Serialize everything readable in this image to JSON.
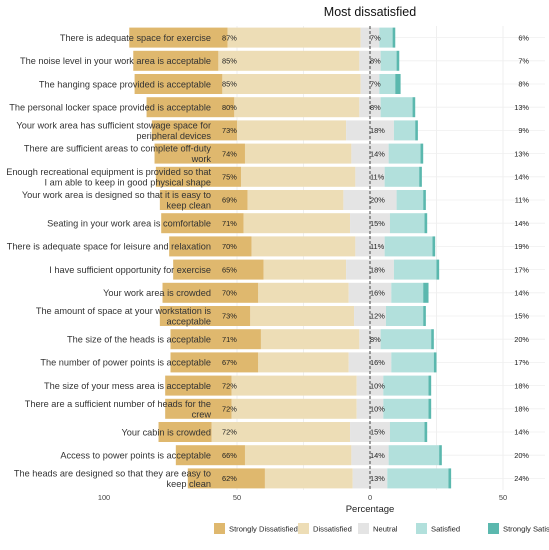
{
  "chart_data": {
    "type": "bar",
    "title": "Most dissatisfied",
    "xlabel": "Percentage",
    "ylabel": "",
    "xlim": [
      -100,
      100
    ],
    "x_ticks": [
      {
        "value": -100,
        "label": "100"
      },
      {
        "value": -50,
        "label": "50"
      },
      {
        "value": 0,
        "label": "0"
      },
      {
        "value": 50,
        "label": "50"
      },
      {
        "value": 100,
        "label": "100"
      }
    ],
    "legend_position": "bottom",
    "grid": true,
    "series_names": [
      "Strongly Dissatisfied",
      "Dissatisfied",
      "Neutral",
      "Satisfied",
      "Strongly Satisfied"
    ],
    "colors": {
      "Strongly Dissatisfied": "#DFB86E",
      "Dissatisfied": "#EDDDB6",
      "Neutral": "#E4E4E4",
      "Satisfied": "#B2E0DC",
      "Strongly Satisfied": "#5BB8AE"
    },
    "items": [
      {
        "label": "There is adequate space for exercise",
        "strongly_dissatisfied": 37,
        "dissatisfied": 50,
        "neutral": 7,
        "satisfied": 5,
        "strongly_satisfied": 1,
        "left_pct": "87%",
        "neutral_pct": "7%",
        "right_pct": "6%"
      },
      {
        "label": "The noise level in your work area is acceptable",
        "strongly_dissatisfied": 32,
        "dissatisfied": 53,
        "neutral": 8,
        "satisfied": 6,
        "strongly_satisfied": 1,
        "left_pct": "85%",
        "neutral_pct": "8%",
        "right_pct": "7%"
      },
      {
        "label": "The hanging space provided is acceptable",
        "strongly_dissatisfied": 33,
        "dissatisfied": 52,
        "neutral": 7,
        "satisfied": 6,
        "strongly_satisfied": 2,
        "left_pct": "85%",
        "neutral_pct": "7%",
        "right_pct": "8%"
      },
      {
        "label": "The personal locker space provided is acceptable",
        "strongly_dissatisfied": 33,
        "dissatisfied": 47,
        "neutral": 8,
        "satisfied": 12,
        "strongly_satisfied": 1,
        "left_pct": "80%",
        "neutral_pct": "8%",
        "right_pct": "13%"
      },
      {
        "label": "Your work area has sufficient stowage space for peripheral devices",
        "strongly_dissatisfied": 32,
        "dissatisfied": 41,
        "neutral": 18,
        "satisfied": 8,
        "strongly_satisfied": 1,
        "left_pct": "73%",
        "neutral_pct": "18%",
        "right_pct": "9%"
      },
      {
        "label": "There are sufficient areas to complete off-duty work",
        "strongly_dissatisfied": 34,
        "dissatisfied": 40,
        "neutral": 14,
        "satisfied": 12,
        "strongly_satisfied": 1,
        "left_pct": "74%",
        "neutral_pct": "14%",
        "right_pct": "13%"
      },
      {
        "label": "Enough recreational equipment is provided so that I am able to keep in good physical shape",
        "strongly_dissatisfied": 32,
        "dissatisfied": 43,
        "neutral": 11,
        "satisfied": 13,
        "strongly_satisfied": 1,
        "left_pct": "75%",
        "neutral_pct": "11%",
        "right_pct": "14%"
      },
      {
        "label": "Your work area is designed so that it is easy to keep clean",
        "strongly_dissatisfied": 33,
        "dissatisfied": 36,
        "neutral": 20,
        "satisfied": 10,
        "strongly_satisfied": 1,
        "left_pct": "69%",
        "neutral_pct": "20%",
        "right_pct": "11%"
      },
      {
        "label": "Seating in your work area is comfortable",
        "strongly_dissatisfied": 31,
        "dissatisfied": 40,
        "neutral": 15,
        "satisfied": 13,
        "strongly_satisfied": 1,
        "left_pct": "71%",
        "neutral_pct": "15%",
        "right_pct": "14%"
      },
      {
        "label": "There is adequate space for leisure and relaxation",
        "strongly_dissatisfied": 31,
        "dissatisfied": 39,
        "neutral": 11,
        "satisfied": 18,
        "strongly_satisfied": 1,
        "left_pct": "70%",
        "neutral_pct": "11%",
        "right_pct": "19%"
      },
      {
        "label": "I have sufficient opportunity for exercise",
        "strongly_dissatisfied": 34,
        "dissatisfied": 31,
        "neutral": 18,
        "satisfied": 16,
        "strongly_satisfied": 1,
        "left_pct": "65%",
        "neutral_pct": "18%",
        "right_pct": "17%"
      },
      {
        "label": "Your work area is crowded",
        "strongly_dissatisfied": 36,
        "dissatisfied": 34,
        "neutral": 16,
        "satisfied": 12,
        "strongly_satisfied": 2,
        "left_pct": "70%",
        "neutral_pct": "16%",
        "right_pct": "14%"
      },
      {
        "label": "The amount of space at your workstation is acceptable",
        "strongly_dissatisfied": 34,
        "dissatisfied": 39,
        "neutral": 12,
        "satisfied": 14,
        "strongly_satisfied": 1,
        "left_pct": "73%",
        "neutral_pct": "12%",
        "right_pct": "15%"
      },
      {
        "label": "The size of the heads is acceptable",
        "strongly_dissatisfied": 34,
        "dissatisfied": 37,
        "neutral": 8,
        "satisfied": 19,
        "strongly_satisfied": 1,
        "left_pct": "71%",
        "neutral_pct": "8%",
        "right_pct": "20%"
      },
      {
        "label": "The number of power points is acceptable",
        "strongly_dissatisfied": 33,
        "dissatisfied": 34,
        "neutral": 16,
        "satisfied": 16,
        "strongly_satisfied": 1,
        "left_pct": "67%",
        "neutral_pct": "16%",
        "right_pct": "17%"
      },
      {
        "label": "The size of your mess area is acceptable",
        "strongly_dissatisfied": 25,
        "dissatisfied": 47,
        "neutral": 10,
        "satisfied": 17,
        "strongly_satisfied": 1,
        "left_pct": "72%",
        "neutral_pct": "10%",
        "right_pct": "18%"
      },
      {
        "label": "There are a sufficient number of heads for the crew",
        "strongly_dissatisfied": 25,
        "dissatisfied": 47,
        "neutral": 10,
        "satisfied": 17,
        "strongly_satisfied": 1,
        "left_pct": "72%",
        "neutral_pct": "10%",
        "right_pct": "18%"
      },
      {
        "label": "Your cabin is crowded",
        "strongly_dissatisfied": 20,
        "dissatisfied": 52,
        "neutral": 15,
        "satisfied": 13,
        "strongly_satisfied": 1,
        "left_pct": "72%",
        "neutral_pct": "15%",
        "right_pct": "14%"
      },
      {
        "label": "Access to power points is acceptable",
        "strongly_dissatisfied": 26,
        "dissatisfied": 40,
        "neutral": 14,
        "satisfied": 19,
        "strongly_satisfied": 1,
        "left_pct": "66%",
        "neutral_pct": "14%",
        "right_pct": "20%"
      },
      {
        "label": "The heads are designed so that they are easy to keep clean",
        "strongly_dissatisfied": 29,
        "dissatisfied": 33,
        "neutral": 13,
        "satisfied": 23,
        "strongly_satisfied": 1,
        "left_pct": "62%",
        "neutral_pct": "13%",
        "right_pct": "24%"
      }
    ]
  }
}
